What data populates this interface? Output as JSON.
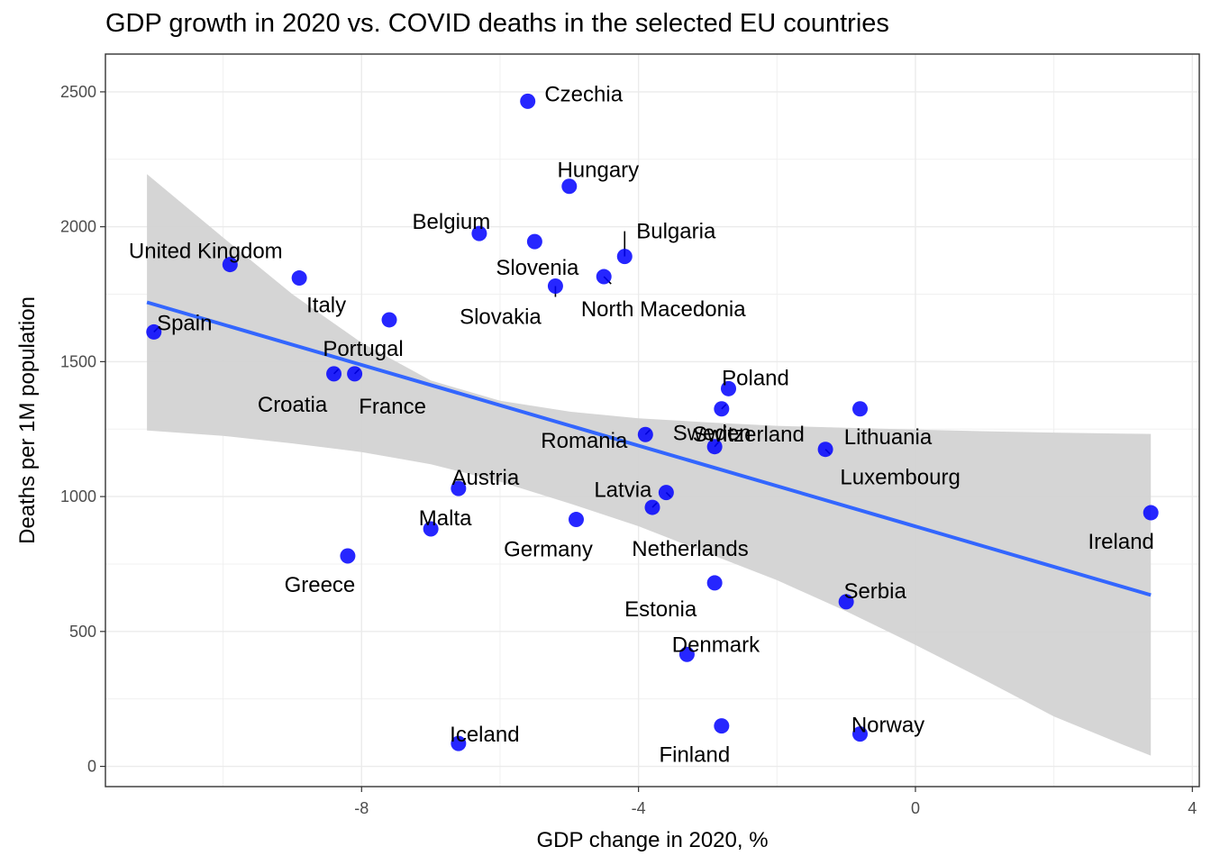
{
  "chart_data": {
    "type": "scatter",
    "title": "GDP growth in 2020 vs. COVID deaths in the selected EU countries",
    "xlabel": "GDP change in 2020, %",
    "ylabel": "Deaths per 1M population",
    "xlim": [
      -11.7,
      4.1
    ],
    "ylim": [
      -75,
      2640
    ],
    "x_ticks": [
      -8,
      -4,
      0,
      4
    ],
    "y_ticks": [
      0,
      500,
      1000,
      1500,
      2000,
      2500
    ],
    "grid": true,
    "point_color": "#0000ff",
    "trend_color": "#3366ff",
    "band_color": "#d3d3d3",
    "trend_line": {
      "x": [
        -11.1,
        3.4
      ],
      "y": [
        1720,
        635
      ]
    },
    "confidence_band": {
      "x": [
        -11.1,
        -10,
        -9,
        -8,
        -7,
        -6,
        -5,
        -4,
        -3,
        -2,
        -1,
        0,
        1,
        2,
        3,
        3.4
      ],
      "upper": [
        2195,
        1960,
        1750,
        1570,
        1430,
        1355,
        1315,
        1290,
        1275,
        1262,
        1255,
        1248,
        1242,
        1237,
        1233,
        1232
      ],
      "lower": [
        1245,
        1225,
        1197,
        1165,
        1120,
        1055,
        975,
        890,
        790,
        690,
        575,
        450,
        320,
        185,
        80,
        40
      ]
    },
    "points": [
      {
        "name": "Czechia",
        "x": -5.6,
        "y": 2465
      },
      {
        "name": "Hungary",
        "x": -5.0,
        "y": 2150
      },
      {
        "name": "Belgium",
        "x": -6.3,
        "y": 1975
      },
      {
        "name": "Slovenia",
        "x": -5.5,
        "y": 1945
      },
      {
        "name": "Bulgaria",
        "x": -4.2,
        "y": 1890
      },
      {
        "name": "United Kingdom",
        "x": -9.9,
        "y": 1860
      },
      {
        "name": "North Macedonia",
        "x": -4.5,
        "y": 1815
      },
      {
        "name": "Italy",
        "x": -8.9,
        "y": 1810
      },
      {
        "name": "Slovakia",
        "x": -5.2,
        "y": 1780
      },
      {
        "name": "Portugal",
        "x": -7.6,
        "y": 1655
      },
      {
        "name": "Spain",
        "x": -11.0,
        "y": 1610
      },
      {
        "name": "France",
        "x": -8.1,
        "y": 1455
      },
      {
        "name": "Croatia",
        "x": -8.4,
        "y": 1455
      },
      {
        "name": "Poland",
        "x": -2.7,
        "y": 1400
      },
      {
        "name": "Lithuania",
        "x": -0.8,
        "y": 1325
      },
      {
        "name": "Switzerland",
        "x": -2.8,
        "y": 1325
      },
      {
        "name": "Romania",
        "x": -3.9,
        "y": 1230
      },
      {
        "name": "Sweden",
        "x": -2.9,
        "y": 1185
      },
      {
        "name": "Luxembourg",
        "x": -1.3,
        "y": 1175
      },
      {
        "name": "Austria",
        "x": -6.6,
        "y": 1030
      },
      {
        "name": "Latvia",
        "x": -3.6,
        "y": 1015
      },
      {
        "name": "Netherlands",
        "x": -3.8,
        "y": 960
      },
      {
        "name": "Ireland",
        "x": 3.4,
        "y": 940
      },
      {
        "name": "Germany",
        "x": -4.9,
        "y": 915
      },
      {
        "name": "Malta",
        "x": -7.0,
        "y": 880
      },
      {
        "name": "Greece",
        "x": -8.2,
        "y": 780
      },
      {
        "name": "Estonia",
        "x": -2.9,
        "y": 680
      },
      {
        "name": "Serbia",
        "x": -1.0,
        "y": 610
      },
      {
        "name": "Denmark",
        "x": -3.3,
        "y": 415
      },
      {
        "name": "Finland",
        "x": -2.8,
        "y": 150
      },
      {
        "name": "Norway",
        "x": -0.8,
        "y": 120
      },
      {
        "name": "Iceland",
        "x": -6.6,
        "y": 85
      }
    ]
  }
}
